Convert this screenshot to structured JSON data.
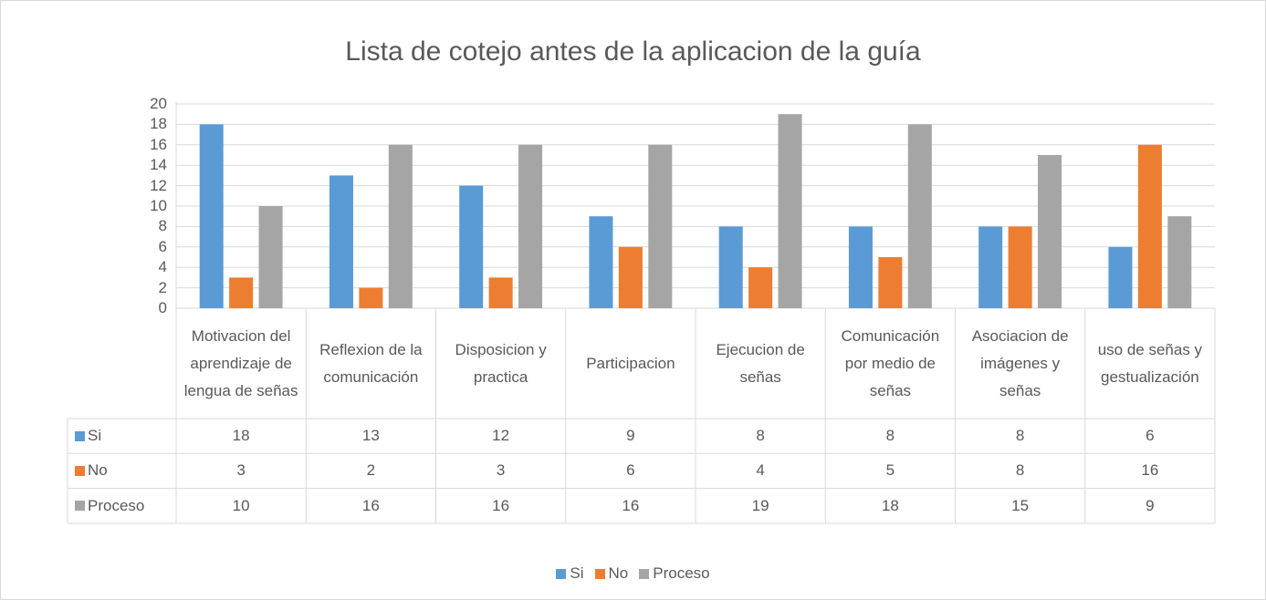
{
  "chart_data": {
    "type": "bar",
    "title": "Lista de cotejo antes de la aplicacion de la guía",
    "categories": [
      "Motivacion del aprendizaje de lengua de señas",
      "Reflexion de la comunicación",
      "Disposicion y practica",
      "Participacion",
      "Ejecucion de señas",
      "Comunicación por medio de señas",
      "Asociacion de imágenes y señas",
      "uso de señas y gestualización"
    ],
    "series": [
      {
        "name": "Si",
        "color": "#5b9bd5",
        "values": [
          18,
          13,
          12,
          9,
          8,
          8,
          8,
          6
        ]
      },
      {
        "name": "No",
        "color": "#ed7d31",
        "values": [
          3,
          2,
          3,
          6,
          4,
          5,
          8,
          16
        ]
      },
      {
        "name": "Proceso",
        "color": "#a5a5a5",
        "values": [
          10,
          16,
          16,
          16,
          19,
          18,
          15,
          9
        ]
      }
    ],
    "ylim": [
      0,
      20
    ],
    "yticks": [
      0,
      2,
      4,
      6,
      8,
      10,
      12,
      14,
      16,
      18,
      20
    ],
    "grid": true,
    "legend": "bottom",
    "data_table": true
  }
}
